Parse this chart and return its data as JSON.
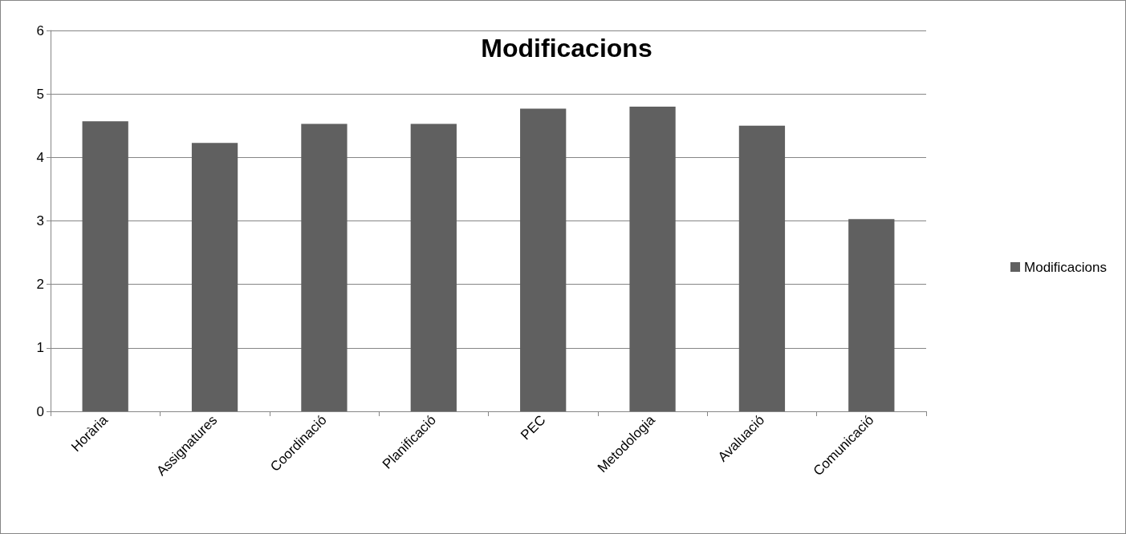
{
  "chart_data": {
    "type": "bar",
    "title": "Modificacions",
    "categories": [
      "Horària",
      "Assignatures",
      "Coordinació",
      "Planificació",
      "PEC",
      "Metodologia",
      "Avaluació",
      "Comunicació"
    ],
    "series": [
      {
        "name": "Modificacions",
        "color": "#606060",
        "values": [
          4.57,
          4.23,
          4.53,
          4.53,
          4.77,
          4.8,
          4.5,
          3.03
        ]
      }
    ],
    "ylim": [
      0,
      6
    ],
    "yticks": [
      0,
      1,
      2,
      3,
      4,
      5,
      6
    ],
    "grid": "y",
    "legend": "right"
  }
}
